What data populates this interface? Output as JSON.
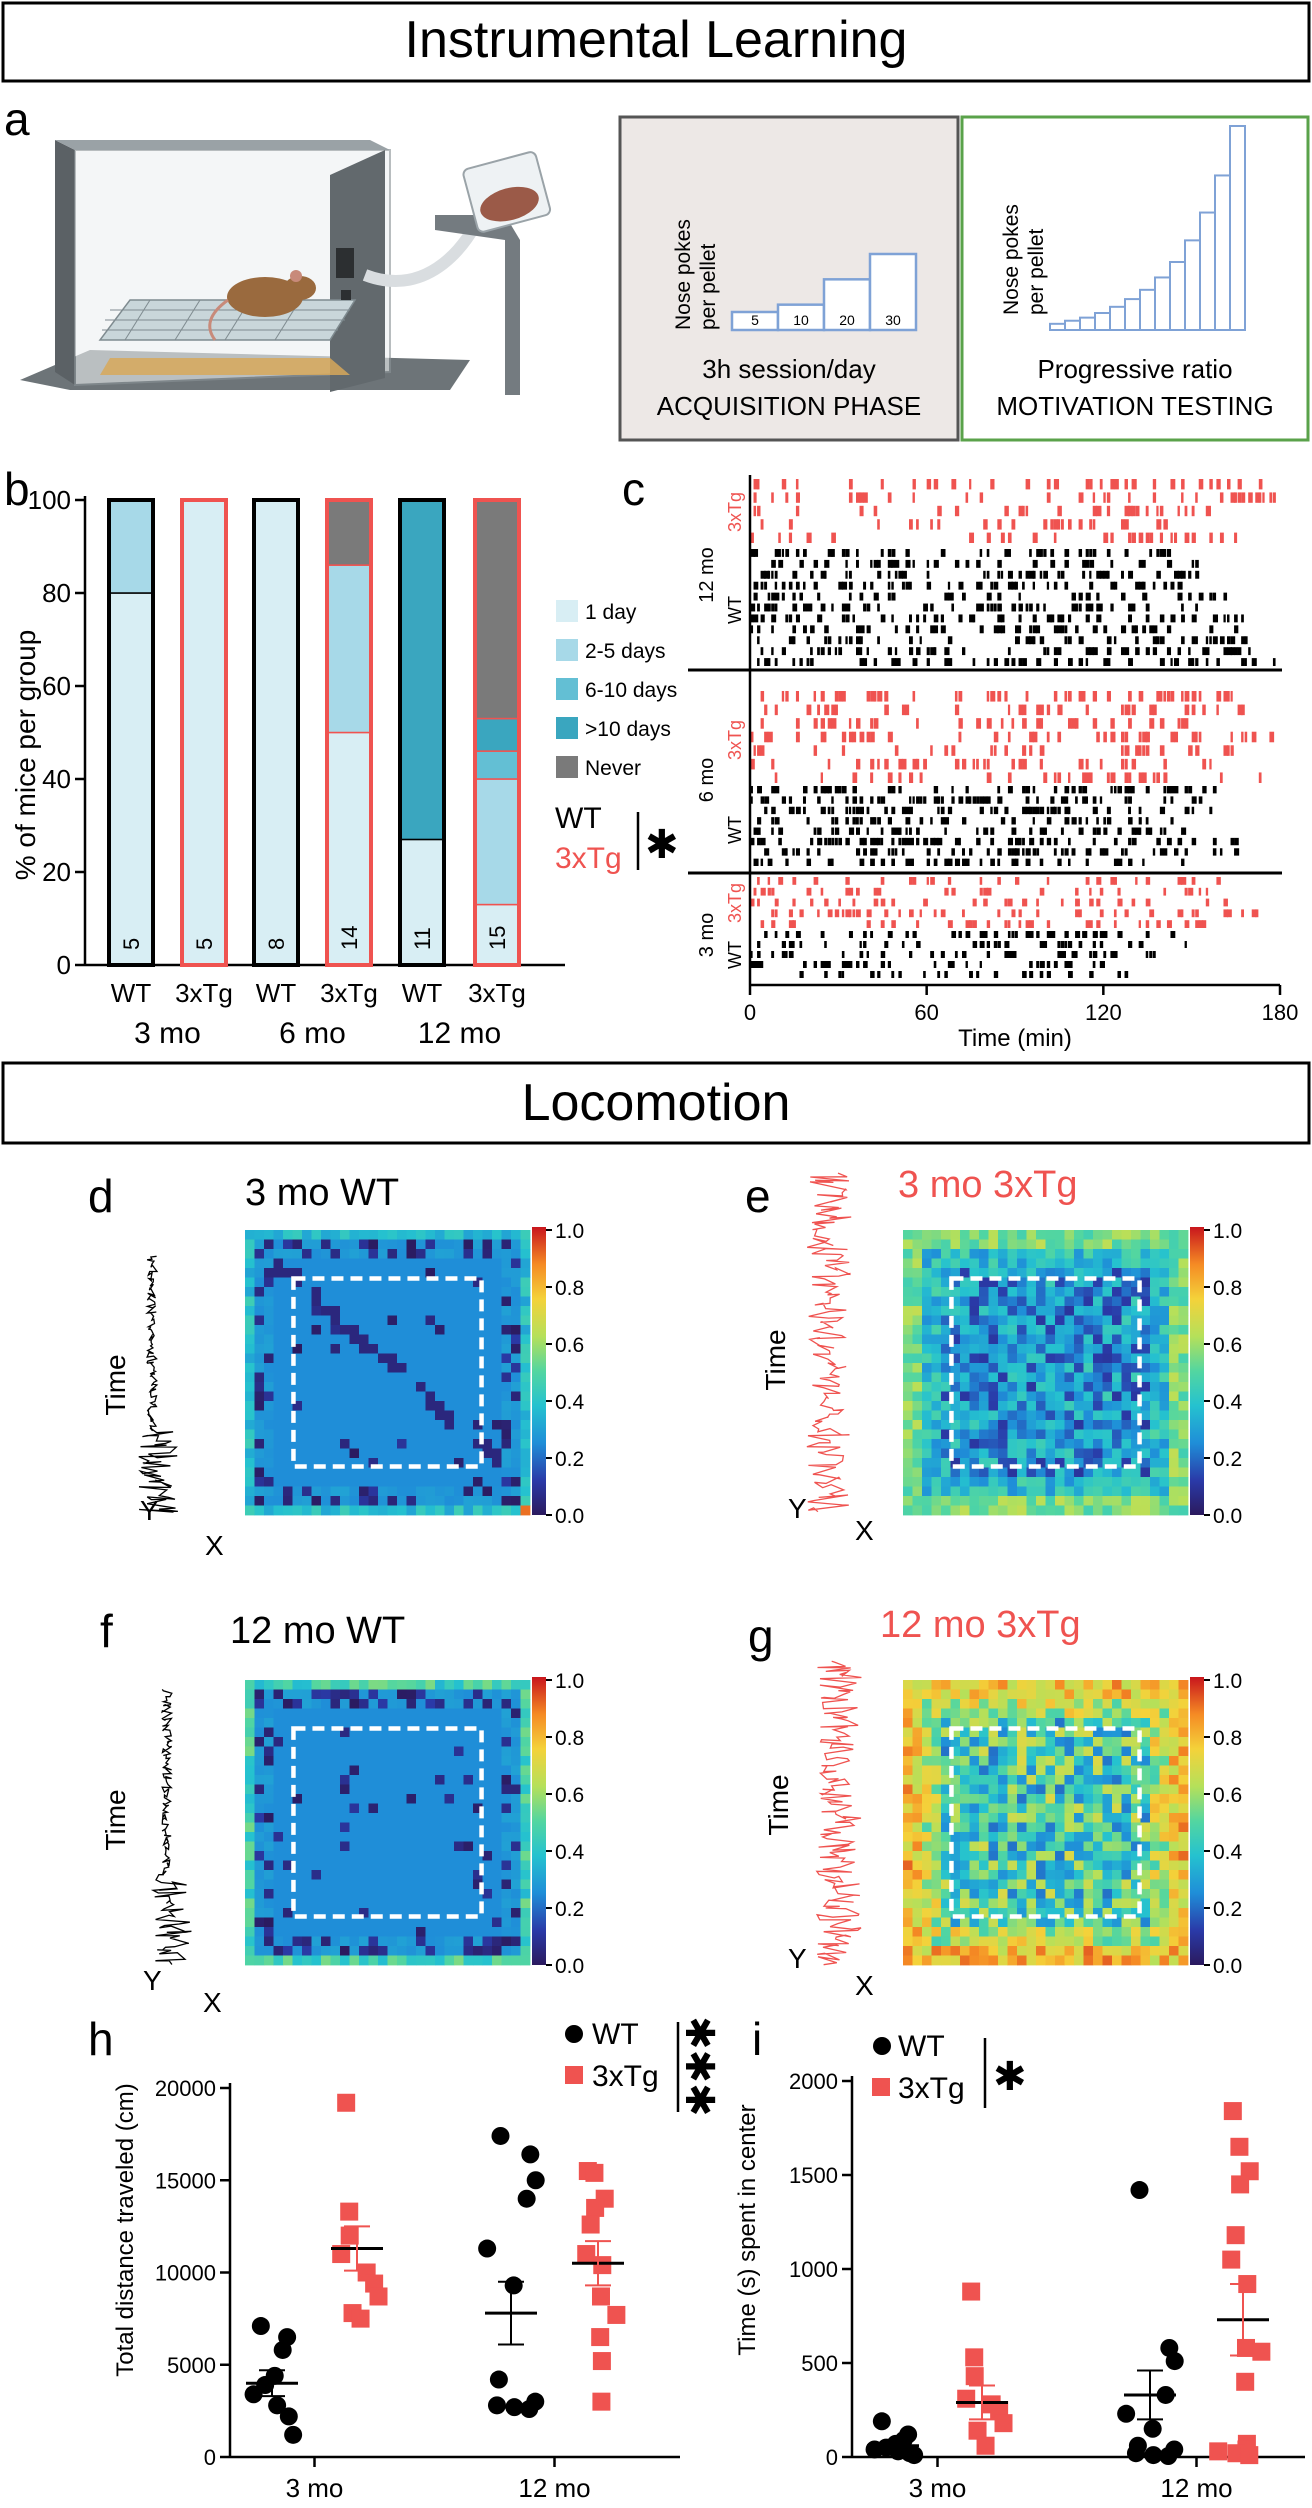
{
  "colors": {
    "wt": "#000000",
    "tg": "#ef5350",
    "bar_1day": "#d8eef4",
    "bar_2to5": "#a7d9e8",
    "bar_6to10": "#63bfd4",
    "bar_gt10": "#3aa6bf",
    "bar_never": "#7a7a7a",
    "box_acq_fill": "#ede8e6",
    "box_acq_stroke": "#555555",
    "box_mot_fill": "#ffffff",
    "box_mot_stroke": "#5aa24a",
    "step_stroke": "#7fa2d6"
  },
  "sections": {
    "instrumental_title": "Instrumental Learning",
    "locomotion_title": "Locomotion"
  },
  "panel_letters": {
    "a": "a",
    "b": "b",
    "c": "c",
    "d": "d",
    "e": "e",
    "f": "f",
    "g": "g",
    "h": "h",
    "i": "i"
  },
  "panel_a": {
    "illustration_icon": "operant-chamber-mouse-illustration",
    "acquisition": {
      "ylabel_line1": "Nose pokes",
      "ylabel_line2": "per pellet",
      "step_values": [
        5,
        10,
        20,
        30
      ],
      "step_labels": [
        "5",
        "10",
        "20",
        "30"
      ],
      "caption_line1": "3h session/day",
      "caption_line2": "ACQUISITION PHASE"
    },
    "motivation": {
      "ylabel_line1": "Nose pokes",
      "ylabel_line2": "per pellet",
      "step_values": [
        2,
        3,
        4,
        5.5,
        7.5,
        10,
        13,
        17,
        22,
        29,
        38,
        50,
        66
      ],
      "caption_line1": "Progressive ratio",
      "caption_line2": "MOTIVATION TESTING"
    }
  },
  "chart_data": [
    {
      "id": "b",
      "type": "bar",
      "stacked": true,
      "ylabel": "% of mice per group",
      "ylim": [
        0,
        100
      ],
      "yticks": [
        "0",
        "20",
        "40",
        "60",
        "80",
        "100"
      ],
      "categories": [
        "WT",
        "3xTg",
        "WT",
        "3xTg",
        "WT",
        "3xTg"
      ],
      "age_groups": [
        "3 mo",
        "6 mo",
        "12 mo"
      ],
      "n_labels": [
        "5",
        "5",
        "8",
        "14",
        "11",
        "15"
      ],
      "series": [
        {
          "name": "1 day",
          "values": [
            80,
            100,
            100,
            50,
            27,
            13
          ]
        },
        {
          "name": "2-5 days",
          "values": [
            20,
            0,
            0,
            36,
            0,
            27
          ]
        },
        {
          "name": "6-10 days",
          "values": [
            0,
            0,
            0,
            0,
            0,
            6
          ]
        },
        {
          "name": ">10 days",
          "values": [
            0,
            0,
            0,
            0,
            73,
            7
          ]
        },
        {
          "name": "Never",
          "values": [
            0,
            0,
            0,
            14,
            0,
            47
          ]
        }
      ],
      "legend": [
        "1 day",
        "2-5 days",
        "6-10 days",
        ">10 days",
        "Never"
      ],
      "stat_labels": {
        "wt": "WT",
        "tg": "3xTg",
        "sig": "✱"
      }
    },
    {
      "id": "c",
      "type": "raster",
      "xlabel": "Time (min)",
      "xlim": [
        0,
        180
      ],
      "xticks": [
        "0",
        "60",
        "120",
        "180"
      ],
      "age_labels": [
        "12 mo",
        "6 mo",
        "3 mo"
      ],
      "group_labels": {
        "wt": "WT",
        "tg": "3xTg"
      },
      "rows": [
        {
          "age": "12 mo",
          "group": "3xTg",
          "count": 5
        },
        {
          "age": "12 mo",
          "group": "WT",
          "count": 11
        },
        {
          "age": "6 mo",
          "group": "3xTg",
          "count": 6
        },
        {
          "age": "6 mo",
          "group": "WT",
          "count": 8
        },
        {
          "age": "3 mo",
          "group": "3xTg",
          "count": 5
        },
        {
          "age": "3 mo",
          "group": "WT",
          "count": 5
        }
      ]
    },
    {
      "id": "h",
      "type": "scatter",
      "ylabel": "Total distance traveled (cm)",
      "ylim": [
        0,
        20000
      ],
      "yticks": [
        "0",
        "5000",
        "10000",
        "15000",
        "20000"
      ],
      "categories": [
        "3 mo",
        "12 mo"
      ],
      "legend": {
        "wt": "WT",
        "tg": "3xTg",
        "sig": "✱✱✱"
      },
      "series": [
        {
          "name": "WT",
          "age": "3 mo",
          "values": [
            7100,
            6500,
            5800,
            4400,
            3900,
            3400,
            2800,
            2200,
            1200
          ],
          "mean": 4000,
          "sem": 700
        },
        {
          "name": "3xTg",
          "age": "3 mo",
          "values": [
            19200,
            13300,
            12000,
            11000,
            10000,
            9400,
            8700,
            7800,
            7500
          ],
          "mean": 11300,
          "sem": 1200
        },
        {
          "name": "WT",
          "age": "12 mo",
          "values": [
            17400,
            16400,
            15000,
            14000,
            11300,
            9300,
            4200,
            3000,
            2800,
            2700,
            2600
          ],
          "mean": 7800,
          "sem": 1700
        },
        {
          "name": "3xTg",
          "age": "12 mo",
          "values": [
            15500,
            15400,
            14000,
            13500,
            12600,
            11000,
            10400,
            8700,
            7700,
            6500,
            5200,
            3000
          ],
          "mean": 10500,
          "sem": 1200
        }
      ]
    },
    {
      "id": "i",
      "type": "scatter",
      "ylabel": "Time (s) spent in center",
      "ylim": [
        0,
        2000
      ],
      "yticks": [
        "0",
        "500",
        "1000",
        "1500",
        "2000"
      ],
      "categories": [
        "3 mo",
        "12 mo"
      ],
      "legend": {
        "wt": "WT",
        "tg": "3xTg",
        "sig": "✱"
      },
      "series": [
        {
          "name": "WT",
          "age": "3 mo",
          "values": [
            190,
            120,
            90,
            70,
            50,
            40,
            30,
            20,
            10
          ],
          "mean": 60,
          "sem": 20
        },
        {
          "name": "3xTg",
          "age": "3 mo",
          "values": [
            880,
            530,
            430,
            310,
            280,
            250,
            180,
            140,
            60
          ],
          "mean": 290,
          "sem": 90
        },
        {
          "name": "WT",
          "age": "12 mo",
          "values": [
            1420,
            580,
            510,
            330,
            230,
            150,
            60,
            40,
            20,
            10,
            5
          ],
          "mean": 330,
          "sem": 130
        },
        {
          "name": "3xTg",
          "age": "12 mo",
          "values": [
            1840,
            1650,
            1520,
            1450,
            1180,
            1050,
            920,
            580,
            560,
            400,
            70,
            40,
            30,
            20,
            10
          ],
          "mean": 730,
          "sem": 190
        }
      ]
    }
  ],
  "heatmaps": {
    "colorbar_ticks": [
      "0.0",
      "0.2",
      "0.4",
      "0.6",
      "0.8",
      "1.0"
    ],
    "axis_time": "Time",
    "axis_y": "Y",
    "axis_x": "X",
    "d": {
      "title": "3 mo WT",
      "group": "wt"
    },
    "e": {
      "title": "3 mo 3xTg",
      "group": "tg"
    },
    "f": {
      "title": "12 mo WT",
      "group": "wt"
    },
    "g": {
      "title": "12 mo 3xTg",
      "group": "tg"
    }
  }
}
